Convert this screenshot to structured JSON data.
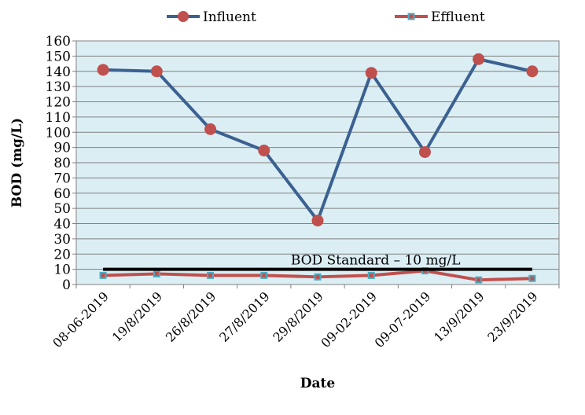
{
  "chart_data": {
    "type": "line",
    "xlabel": "Date",
    "ylabel": "BOD (mg/L)",
    "ylim": [
      0,
      160
    ],
    "ytick_step": 10,
    "grid": true,
    "legend_position": "top",
    "categories": [
      "08-06-2019",
      "19/8/2019",
      "26/8/2019",
      "27/8/2019",
      "29/8/2019",
      "09-02-2019",
      "09-07-2019",
      "13/9/2019",
      "23/9/2019"
    ],
    "series": [
      {
        "name": "Influent",
        "values": [
          141,
          140,
          102,
          88,
          42,
          139,
          87,
          148,
          140
        ],
        "line_color": "#3b6191",
        "marker": "circle",
        "marker_color": "#c0504d"
      },
      {
        "name": "Effluent",
        "values": [
          6,
          7,
          6,
          6,
          5,
          6,
          9,
          3,
          4
        ],
        "line_color": "#c0504d",
        "marker": "square",
        "marker_color": "#4bacc6"
      }
    ],
    "reference_line": {
      "label": "BOD Standard – 10 mg/L",
      "value": 10,
      "color": "#000000"
    },
    "plot_background": "#dbeef4"
  }
}
